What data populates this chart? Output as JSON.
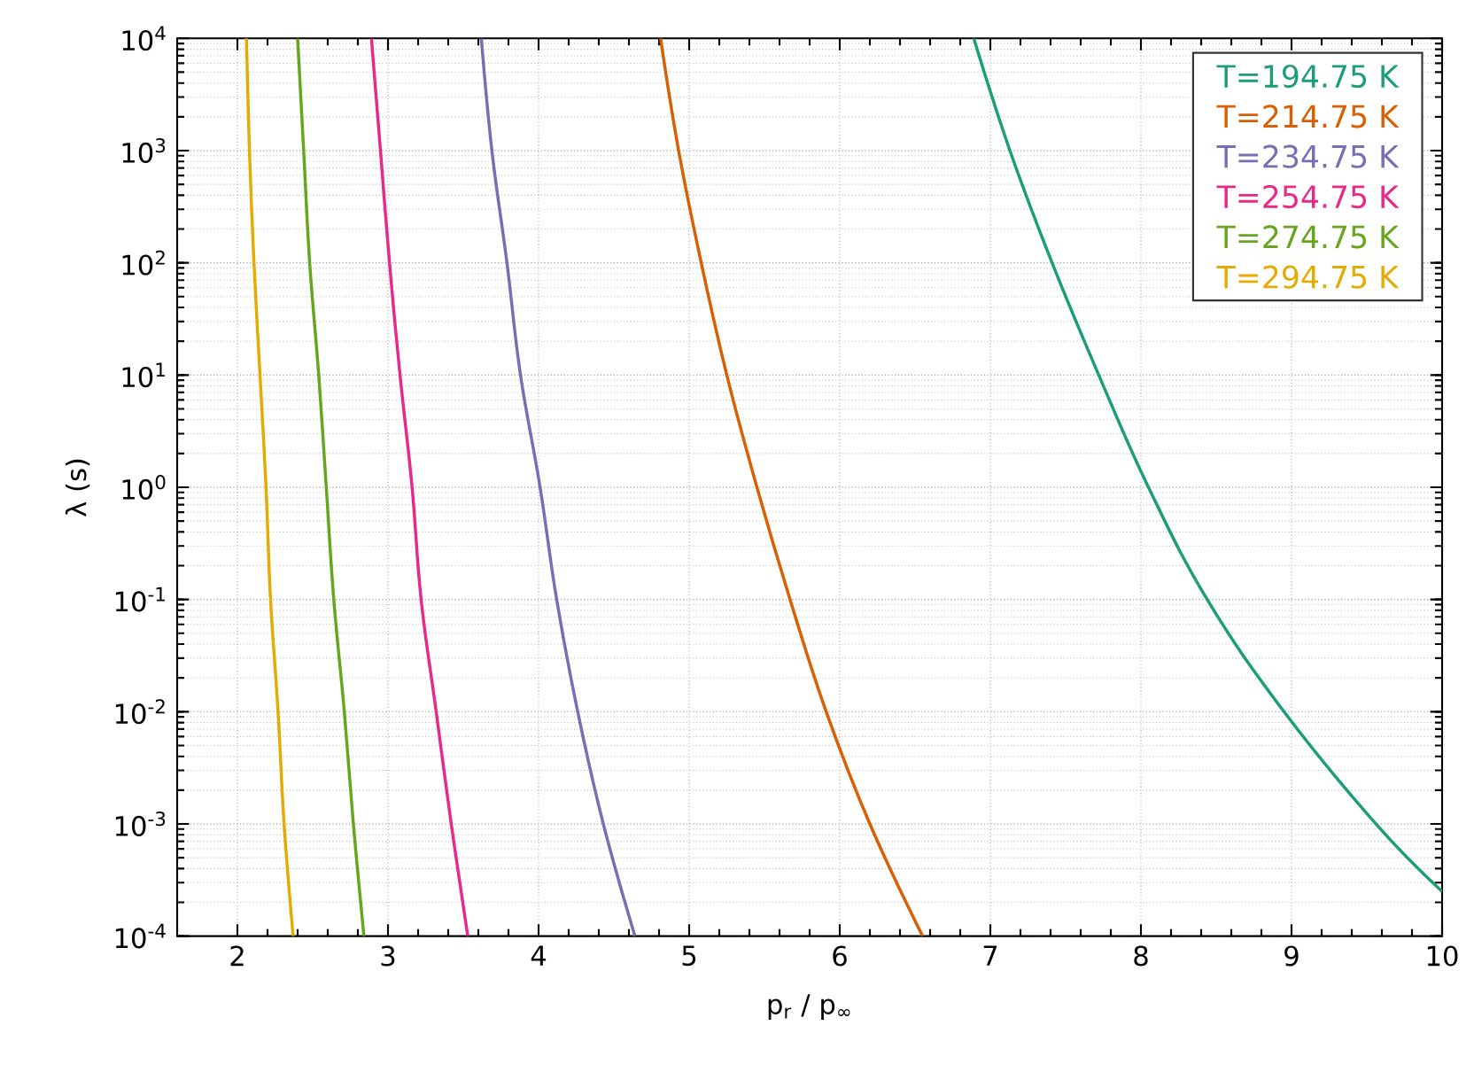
{
  "chart_data": {
    "type": "line",
    "xlabel": "p$_{r}$ / p$_{∞}$",
    "ylabel": "λ (s)",
    "log": "y",
    "grid": true,
    "legend": "top right",
    "xlim": [
      1.6,
      10
    ],
    "xticks": [
      2,
      3,
      4,
      5,
      6,
      7,
      8,
      9,
      10
    ],
    "ylim": [
      0.0001,
      10000
    ],
    "yticks": [
      {
        "value": 0.0001,
        "label": "10$^{-4}$"
      },
      {
        "value": 0.001,
        "label": "10$^{-3}$"
      },
      {
        "value": 0.01,
        "label": "10$^{-2}$"
      },
      {
        "value": 0.1,
        "label": "10$^{-1}$"
      },
      {
        "value": 1,
        "label": "10$^{0}$"
      },
      {
        "value": 10,
        "label": "10$^{1}$"
      },
      {
        "value": 100,
        "label": "10$^{2}$"
      },
      {
        "value": 1000,
        "label": "10$^{3}$"
      },
      {
        "value": 10000,
        "label": "10$^{4}$"
      }
    ],
    "series": [
      {
        "name": "T=194.75 K",
        "color": "#1b9e77",
        "x": [
          6.89,
          7.13,
          7.41,
          7.72,
          8.05,
          8.44,
          8.95,
          9.56,
          10
        ],
        "values": [
          10000,
          1000,
          100,
          10,
          1,
          0.1,
          0.01,
          0.001,
          0.00025
        ]
      },
      {
        "name": "T=214.75 K",
        "color": "#d95f02",
        "x": [
          4.81,
          4.93,
          5.08,
          5.25,
          5.45,
          5.67,
          5.91,
          6.2,
          6.55
        ],
        "values": [
          10000,
          1000,
          100,
          10,
          1,
          0.1,
          0.01,
          0.001,
          0.0001
        ]
      },
      {
        "name": "T=234.75 K",
        "color": "#7570b3",
        "x": [
          3.62,
          3.69,
          3.79,
          3.88,
          4.01,
          4.12,
          4.26,
          4.43,
          4.64
        ],
        "values": [
          10000,
          1000,
          100,
          10,
          1,
          0.1,
          0.01,
          0.001,
          0.0001
        ]
      },
      {
        "name": "T=254.75 K",
        "color": "#e7298a",
        "x": [
          2.89,
          2.95,
          3.01,
          3.08,
          3.16,
          3.22,
          3.32,
          3.42,
          3.53
        ],
        "values": [
          10000,
          1000,
          100,
          10,
          1,
          0.1,
          0.01,
          0.001,
          0.0001
        ]
      },
      {
        "name": "T=274.75 K",
        "color": "#66a61e",
        "x": [
          2.4,
          2.44,
          2.48,
          2.54,
          2.59,
          2.64,
          2.71,
          2.77,
          2.84
        ],
        "values": [
          10000,
          1000,
          100,
          10,
          1,
          0.1,
          0.01,
          0.001,
          0.0001
        ]
      },
      {
        "name": "T=294.75 K",
        "color": "#e6ab02",
        "x": [
          2.06,
          2.08,
          2.11,
          2.15,
          2.19,
          2.22,
          2.27,
          2.31,
          2.37
        ],
        "values": [
          10000,
          1000,
          100,
          10,
          1,
          0.1,
          0.01,
          0.001,
          0.0001
        ]
      }
    ]
  }
}
